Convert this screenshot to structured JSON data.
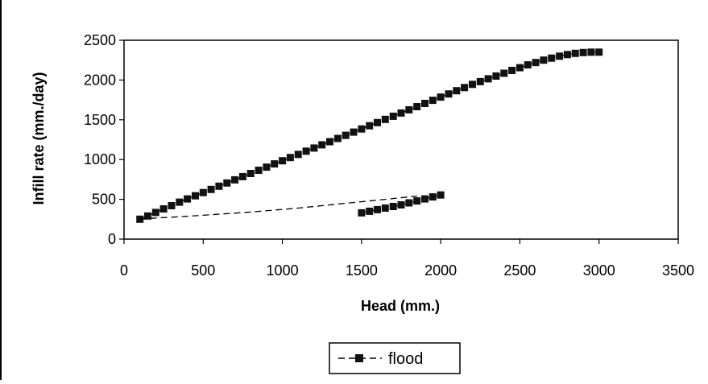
{
  "chart_data": {
    "type": "line",
    "title": "",
    "xlabel": "Head (mm.)",
    "ylabel": "Infill rate (mm./day)",
    "xlim": [
      0,
      3500
    ],
    "ylim": [
      0,
      2500
    ],
    "x_ticks": [
      "0",
      "500",
      "1000",
      "1500",
      "2000",
      "2500",
      "3000",
      "3500"
    ],
    "y_ticks": [
      "0",
      "500",
      "1000",
      "1500",
      "2000",
      "2500"
    ],
    "grid": false,
    "legend_position": "bottom",
    "series": [
      {
        "name": "flood",
        "color": "#000000",
        "line_style": "dashed",
        "marker": "square",
        "segments": [
          {
            "x": [
              100,
              150,
              200,
              250,
              300,
              350,
              400,
              450,
              500,
              550,
              600,
              650,
              700,
              750,
              800,
              850,
              900,
              950,
              1000,
              1050,
              1100,
              1150,
              1200,
              1250,
              1300,
              1350,
              1400,
              1450,
              1500,
              1550,
              1600,
              1650,
              1700,
              1750,
              1800,
              1850,
              1900,
              1950,
              2000,
              2050,
              2100,
              2150,
              2200,
              2250,
              2300,
              2350,
              2400,
              2450,
              2500,
              2550,
              2600,
              2650,
              2700,
              2750,
              2800,
              2850,
              2900,
              2950,
              3000
            ],
            "y": [
              250,
              290,
              335,
              380,
              420,
              465,
              505,
              545,
              585,
              625,
              665,
              705,
              745,
              785,
              825,
              865,
              905,
              945,
              985,
              1025,
              1065,
              1105,
              1145,
              1185,
              1225,
              1265,
              1305,
              1345,
              1385,
              1425,
              1465,
              1505,
              1545,
              1585,
              1625,
              1665,
              1705,
              1745,
              1785,
              1825,
              1865,
              1905,
              1945,
              1980,
              2015,
              2050,
              2085,
              2120,
              2155,
              2190,
              2220,
              2250,
              2275,
              2300,
              2320,
              2335,
              2345,
              2350,
              2350
            ]
          },
          {
            "x": [
              100,
              200,
              300,
              500,
              800,
              1100,
              1400,
              1600,
              1800,
              1850
            ],
            "y": [
              250,
              265,
              275,
              300,
              340,
              390,
              450,
              490,
              530,
              540
            ]
          },
          {
            "x": [
              1500,
              1550,
              1600,
              1650,
              1700,
              1750,
              1800,
              1850,
              1900,
              1950,
              2000
            ],
            "y": [
              330,
              350,
              370,
              390,
              410,
              430,
              455,
              480,
              505,
              530,
              555
            ]
          }
        ]
      }
    ]
  }
}
